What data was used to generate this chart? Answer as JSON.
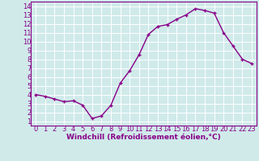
{
  "x": [
    0,
    1,
    2,
    3,
    4,
    5,
    6,
    7,
    8,
    9,
    10,
    11,
    12,
    13,
    14,
    15,
    16,
    17,
    18,
    19,
    20,
    21,
    22,
    23
  ],
  "y": [
    4.0,
    3.8,
    3.5,
    3.2,
    3.3,
    2.8,
    1.3,
    1.6,
    2.8,
    5.3,
    6.7,
    8.5,
    10.8,
    11.7,
    11.9,
    12.5,
    13.0,
    13.7,
    13.5,
    13.2,
    11.0,
    9.5,
    8.0,
    7.5
  ],
  "xlabel": "Windchill (Refroidissement éolien,°C)",
  "xlim": [
    -0.5,
    23.5
  ],
  "ylim": [
    0.5,
    14.5
  ],
  "yticks": [
    1,
    2,
    3,
    4,
    5,
    6,
    7,
    8,
    9,
    10,
    11,
    12,
    13,
    14
  ],
  "xticks": [
    0,
    1,
    2,
    3,
    4,
    5,
    6,
    7,
    8,
    9,
    10,
    11,
    12,
    13,
    14,
    15,
    16,
    17,
    18,
    19,
    20,
    21,
    22,
    23
  ],
  "line_color": "#880088",
  "marker": "+",
  "bg_color": "#d0eaea",
  "grid_color": "#ffffff",
  "text_color": "#880088",
  "xlabel_fontsize": 6.5,
  "tick_fontsize": 6.0,
  "linewidth": 1.0,
  "markersize": 3.5,
  "spine_color": "#880088"
}
